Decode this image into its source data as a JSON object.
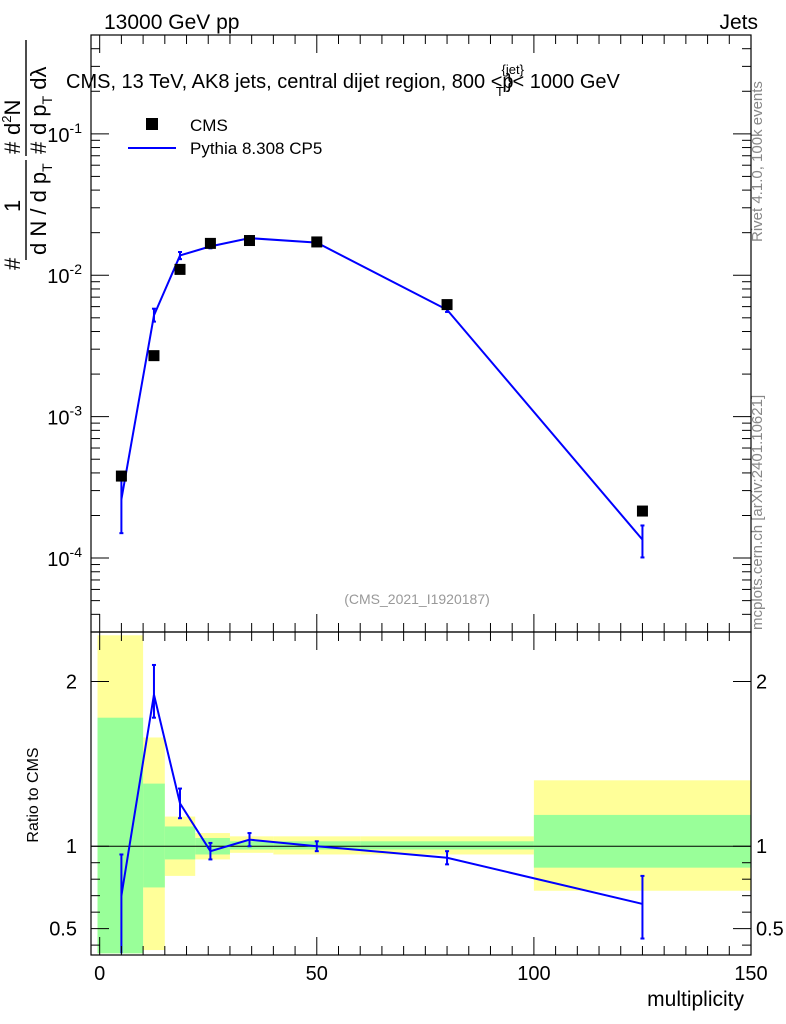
{
  "header": {
    "left": "13000 GeV pp",
    "right": "Jets"
  },
  "side": {
    "rivet": "Rivet 4.1.0,  100k events",
    "mcplots": "mcplots.cern.ch [arXiv:2401.10621]"
  },
  "chart_data": [
    {
      "type": "scatter",
      "title": "CMS, 13 TeV, AK8 jets, central dijet region, 800 <p_T^{jet}< 1000 GeV",
      "title_parts": {
        "main": "CMS, 13 TeV, AK8 jets, central dijet region, 800 <p",
        "sup": "{jet}",
        "sub": "T",
        "end": "}< 1000 GeV"
      },
      "ylabel": "# 1 / dN/dpT # d²N / dpT dλ",
      "xlim": [
        -2,
        150
      ],
      "ylim": [
        3e-05,
        0.5
      ],
      "yscale": "log",
      "ytick_labels": [
        {
          "base": "10",
          "exp": "-4",
          "value": 0.0001
        },
        {
          "base": "10",
          "exp": "-3",
          "value": 0.001
        },
        {
          "base": "10",
          "exp": "-2",
          "value": 0.01
        },
        {
          "base": "10",
          "exp": "-1",
          "value": 0.1
        }
      ],
      "watermark": "(CMS_2021_I1920187)",
      "legend": [
        {
          "label": "CMS",
          "marker": "square",
          "color": "#000000"
        },
        {
          "label": "Pythia 8.308 CP5",
          "marker": "line",
          "color": "#0000ff"
        }
      ],
      "series": [
        {
          "name": "CMS",
          "x": [
            5,
            12.5,
            18.5,
            25.5,
            34.5,
            50,
            80,
            125
          ],
          "y": [
            0.00038,
            0.0027,
            0.011,
            0.0168,
            0.0176,
            0.0172,
            0.0062,
            0.000215
          ]
        },
        {
          "name": "Pythia 8.308 CP5",
          "x": [
            5,
            12.5,
            18.5,
            25.5,
            34.5,
            50,
            80,
            125
          ],
          "y": [
            0.00026,
            0.0052,
            0.0138,
            0.016,
            0.0183,
            0.017,
            0.0057,
            0.000135
          ],
          "yerr_low": [
            0.00015,
            0.0047,
            0.013,
            0.0155,
            0.0178,
            0.0167,
            0.0055,
            0.000101
          ],
          "yerr_high": [
            0.00037,
            0.0058,
            0.0146,
            0.0166,
            0.0189,
            0.0174,
            0.0059,
            0.00017
          ]
        }
      ]
    },
    {
      "type": "line",
      "xlabel": "multiplicity",
      "ylabel": "Ratio to CMS",
      "xlim": [
        -2,
        150
      ],
      "ylim": [
        0.34,
        2.3
      ],
      "x_ticks": [
        0,
        50,
        100,
        150
      ],
      "y_ticks": [
        0.5,
        1,
        2
      ],
      "reference_line": 1,
      "uncertainty_bands": [
        {
          "xlow": -0.5,
          "xhigh": 10,
          "stat_low": 0.35,
          "stat_high": 1.78,
          "tot_low": 0.35,
          "tot_high": 2.28
        },
        {
          "xlow": 10,
          "xhigh": 15,
          "stat_low": 0.75,
          "stat_high": 1.38,
          "tot_low": 0.37,
          "tot_high": 1.66
        },
        {
          "xlow": 15,
          "xhigh": 22,
          "stat_low": 0.92,
          "stat_high": 1.12,
          "tot_low": 0.82,
          "tot_high": 1.18
        },
        {
          "xlow": 22,
          "xhigh": 30,
          "stat_low": 0.95,
          "stat_high": 1.05,
          "tot_low": 0.92,
          "tot_high": 1.08
        },
        {
          "xlow": 30,
          "xhigh": 40,
          "stat_low": 0.98,
          "stat_high": 1.03,
          "tot_low": 0.96,
          "tot_high": 1.06
        },
        {
          "xlow": 40,
          "xhigh": 60,
          "stat_low": 0.98,
          "stat_high": 1.03,
          "tot_low": 0.95,
          "tot_high": 1.06
        },
        {
          "xlow": 60,
          "xhigh": 100,
          "stat_low": 0.98,
          "stat_high": 1.03,
          "tot_low": 0.95,
          "tot_high": 1.06
        },
        {
          "xlow": 100,
          "xhigh": 150,
          "stat_low": 0.87,
          "stat_high": 1.19,
          "tot_low": 0.73,
          "tot_high": 1.4
        }
      ],
      "series": [
        {
          "name": "Pythia 8.308 CP5",
          "x": [
            5,
            12.5,
            18.5,
            25.5,
            34.5,
            50,
            80,
            125
          ],
          "y": [
            0.7,
            1.92,
            1.26,
            0.97,
            1.04,
            1.0,
            0.93,
            0.65
          ],
          "yerr_low": [
            0.34,
            1.78,
            1.17,
            0.92,
            1.0,
            0.97,
            0.89,
            0.44
          ],
          "yerr_high": [
            0.95,
            2.1,
            1.35,
            1.02,
            1.08,
            1.03,
            0.97,
            0.82
          ]
        }
      ]
    }
  ],
  "colors": {
    "mc": "#0000ff",
    "data": "#000000",
    "stat_band": "#99ff99",
    "total_band": "#ffff99",
    "watermark": "#999999",
    "side_text": "#888888"
  }
}
